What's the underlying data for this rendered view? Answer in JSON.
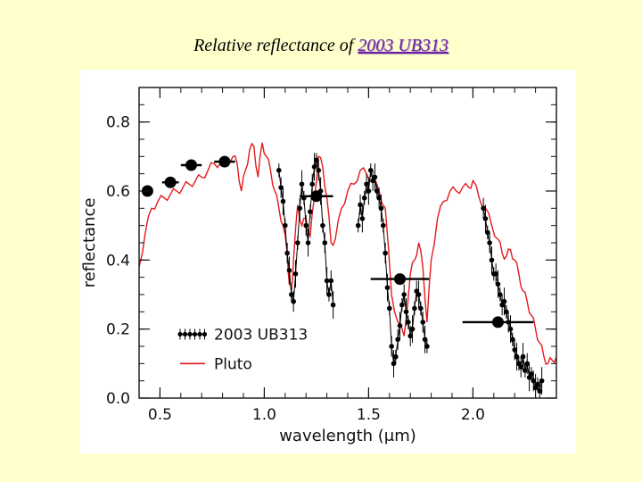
{
  "slide": {
    "title_prefix": "Relative reflectance of ",
    "title_highlight": "2003 UB313"
  },
  "chart_data": {
    "type": "line",
    "xlabel": "wavelength (μm)",
    "ylabel": "reflectance",
    "xlim": [
      0.4,
      2.4
    ],
    "ylim": [
      0.0,
      0.9
    ],
    "xticks": [
      0.5,
      1.0,
      1.5,
      2.0
    ],
    "xtick_labels": [
      "0.5",
      "1.0",
      "1.5",
      "2.0"
    ],
    "yticks": [
      0.0,
      0.2,
      0.4,
      0.6,
      0.8
    ],
    "ytick_labels": [
      "0.0",
      "0.2",
      "0.4",
      "0.6",
      "0.8"
    ],
    "legend": {
      "position": "bottom-left",
      "entries": [
        "2003 UB313",
        "Pluto"
      ]
    },
    "colors": {
      "series_2003UB313": "#000000",
      "pluto": "#E41A1C"
    },
    "series": [
      {
        "name": "2003 UB313",
        "kind": "broadband-photometry",
        "points": [
          {
            "x": 0.44,
            "y": 0.6,
            "xerr": 0.02
          },
          {
            "x": 0.55,
            "y": 0.625,
            "xerr": 0.04
          },
          {
            "x": 0.65,
            "y": 0.675,
            "xerr": 0.05
          },
          {
            "x": 0.81,
            "y": 0.685,
            "xerr": 0.05
          },
          {
            "x": 1.25,
            "y": 0.585,
            "xerr": 0.08
          },
          {
            "x": 1.65,
            "y": 0.345,
            "xerr": 0.14
          },
          {
            "x": 2.12,
            "y": 0.22,
            "xerr": 0.17
          }
        ]
      },
      {
        "name": "2003 UB313",
        "kind": "spectrum",
        "x": [
          1.07,
          1.08,
          1.09,
          1.1,
          1.11,
          1.12,
          1.13,
          1.14,
          1.15,
          1.16,
          1.17,
          1.18,
          1.19,
          1.2,
          1.21,
          1.22,
          1.23,
          1.24,
          1.25,
          1.26,
          1.27,
          1.28,
          1.29,
          1.3,
          1.31,
          1.32,
          1.33,
          1.45,
          1.46,
          1.47,
          1.48,
          1.49,
          1.5,
          1.51,
          1.52,
          1.53,
          1.54,
          1.55,
          1.56,
          1.57,
          1.58,
          1.59,
          1.6,
          1.61,
          1.62,
          1.63,
          1.64,
          1.65,
          1.66,
          1.67,
          1.68,
          1.69,
          1.7,
          1.71,
          1.72,
          1.73,
          1.74,
          1.75,
          1.76,
          1.77,
          1.78,
          2.05,
          2.06,
          2.07,
          2.08,
          2.09,
          2.1,
          2.11,
          2.12,
          2.13,
          2.14,
          2.15,
          2.16,
          2.17,
          2.18,
          2.19,
          2.2,
          2.21,
          2.22,
          2.23,
          2.24,
          2.25,
          2.26,
          2.27,
          2.28,
          2.29,
          2.3,
          2.31,
          2.32,
          2.33
        ],
        "y": [
          0.66,
          0.61,
          0.57,
          0.5,
          0.42,
          0.37,
          0.3,
          0.28,
          0.36,
          0.45,
          0.55,
          0.62,
          0.58,
          0.5,
          0.45,
          0.54,
          0.62,
          0.67,
          0.69,
          0.66,
          0.6,
          0.5,
          0.45,
          0.34,
          0.3,
          0.34,
          0.27,
          0.5,
          0.56,
          0.52,
          0.58,
          0.62,
          0.6,
          0.66,
          0.63,
          0.64,
          0.6,
          0.58,
          0.55,
          0.5,
          0.42,
          0.32,
          0.26,
          0.15,
          0.1,
          0.12,
          0.17,
          0.21,
          0.27,
          0.3,
          0.25,
          0.22,
          0.18,
          0.2,
          0.26,
          0.31,
          0.3,
          0.26,
          0.22,
          0.17,
          0.15,
          0.55,
          0.52,
          0.48,
          0.45,
          0.4,
          0.36,
          0.36,
          0.33,
          0.3,
          0.27,
          0.28,
          0.25,
          0.22,
          0.2,
          0.17,
          0.14,
          0.12,
          0.1,
          0.09,
          0.12,
          0.08,
          0.1,
          0.06,
          0.07,
          0.05,
          0.03,
          0.04,
          0.02,
          0.05
        ]
      },
      {
        "name": "Pluto",
        "kind": "spectrum",
        "x": [
          0.4,
          0.43,
          0.46,
          0.49,
          0.52,
          0.55,
          0.58,
          0.61,
          0.64,
          0.67,
          0.7,
          0.73,
          0.76,
          0.79,
          0.82,
          0.85,
          0.87,
          0.89,
          0.91,
          0.93,
          0.95,
          0.97,
          0.99,
          1.01,
          1.03,
          1.05,
          1.07,
          1.09,
          1.11,
          1.12,
          1.13,
          1.14,
          1.16,
          1.18,
          1.2,
          1.22,
          1.24,
          1.26,
          1.28,
          1.3,
          1.32,
          1.34,
          1.37,
          1.4,
          1.43,
          1.46,
          1.49,
          1.52,
          1.55,
          1.58,
          1.61,
          1.64,
          1.67,
          1.7,
          1.72,
          1.74,
          1.76,
          1.78,
          1.8,
          1.83,
          1.86,
          1.89,
          1.92,
          1.95,
          1.98,
          2.0,
          2.03,
          2.06,
          2.09,
          2.12,
          2.14,
          2.16,
          2.18,
          2.2,
          2.22,
          2.24,
          2.26,
          2.28,
          2.3,
          2.32,
          2.34,
          2.36,
          2.38,
          2.4
        ],
        "y": [
          0.38,
          0.48,
          0.55,
          0.57,
          0.58,
          0.59,
          0.6,
          0.61,
          0.62,
          0.63,
          0.64,
          0.66,
          0.68,
          0.68,
          0.69,
          0.7,
          0.68,
          0.6,
          0.66,
          0.72,
          0.73,
          0.64,
          0.74,
          0.7,
          0.66,
          0.6,
          0.55,
          0.5,
          0.42,
          0.33,
          0.31,
          0.4,
          0.56,
          0.5,
          0.52,
          0.47,
          0.58,
          0.7,
          0.67,
          0.58,
          0.45,
          0.46,
          0.55,
          0.6,
          0.62,
          0.66,
          0.65,
          0.63,
          0.6,
          0.55,
          0.3,
          0.22,
          0.18,
          0.36,
          0.4,
          0.45,
          0.38,
          0.22,
          0.4,
          0.52,
          0.57,
          0.6,
          0.6,
          0.61,
          0.61,
          0.63,
          0.58,
          0.55,
          0.5,
          0.46,
          0.42,
          0.41,
          0.43,
          0.4,
          0.36,
          0.31,
          0.28,
          0.24,
          0.2,
          0.16,
          0.12,
          0.1,
          0.11,
          0.12
        ]
      }
    ]
  }
}
